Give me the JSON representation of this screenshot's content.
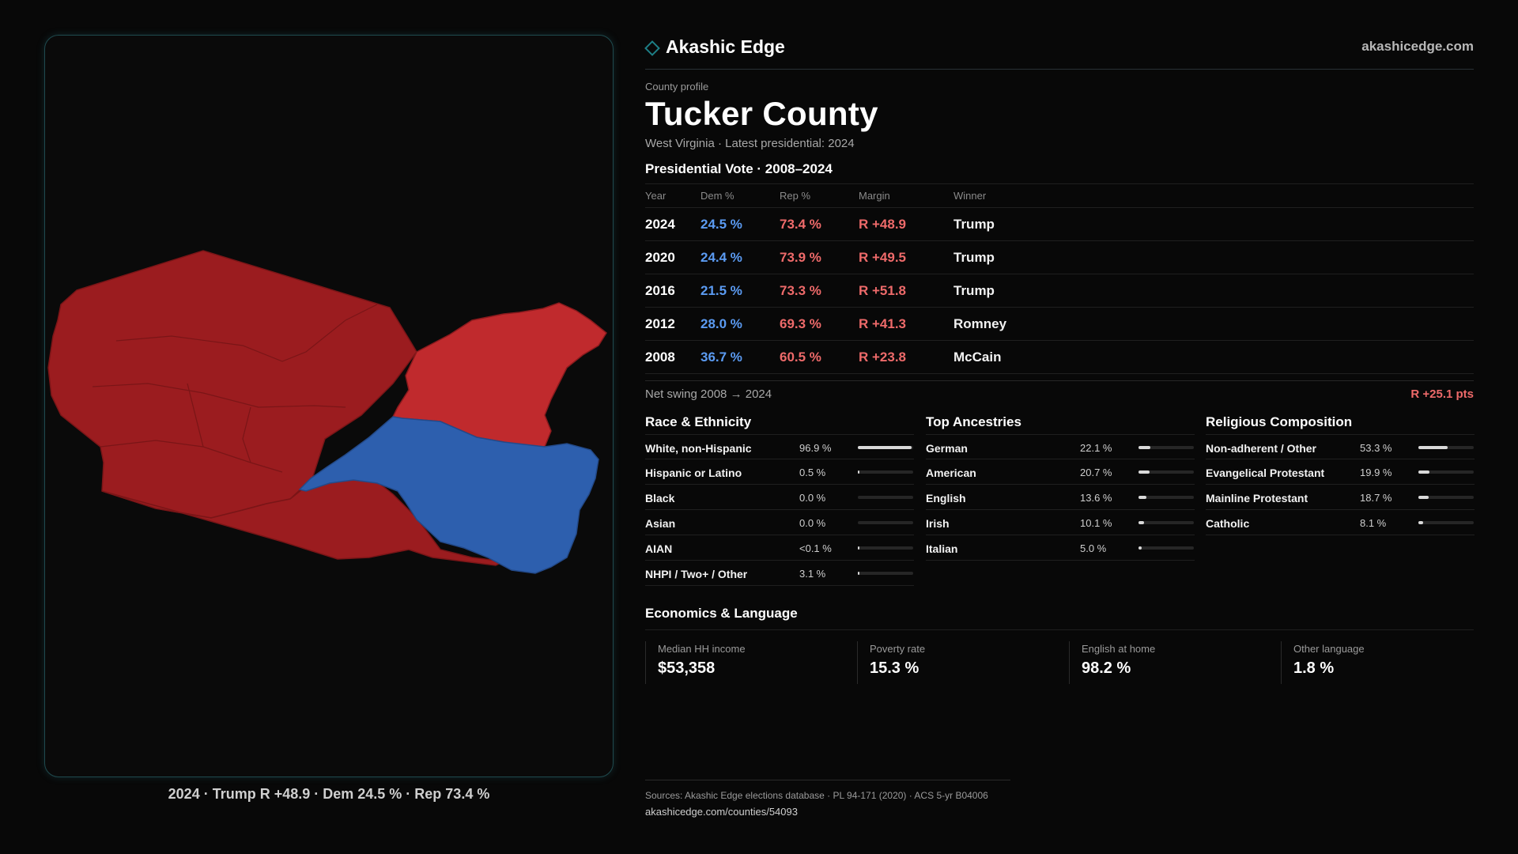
{
  "brand": {
    "name": "Akashic Edge",
    "url": "akashicedge.com"
  },
  "profile": {
    "eyebrow": "County profile",
    "county": "Tucker County",
    "subline": "West Virginia · Latest presidential: 2024"
  },
  "votes": {
    "title": "Presidential Vote · 2008–2024",
    "headers": {
      "year": "Year",
      "dem": "Dem %",
      "rep": "Rep %",
      "margin": "Margin",
      "winner": "Winner"
    },
    "rows": [
      {
        "year": "2024",
        "dem": "24.5 %",
        "rep": "73.4 %",
        "margin": "R +48.9",
        "winner": "Trump"
      },
      {
        "year": "2020",
        "dem": "24.4 %",
        "rep": "73.9 %",
        "margin": "R +49.5",
        "winner": "Trump"
      },
      {
        "year": "2016",
        "dem": "21.5 %",
        "rep": "73.3 %",
        "margin": "R +51.8",
        "winner": "Trump"
      },
      {
        "year": "2012",
        "dem": "28.0 %",
        "rep": "69.3 %",
        "margin": "R +41.3",
        "winner": "Romney"
      },
      {
        "year": "2008",
        "dem": "36.7 %",
        "rep": "60.5 %",
        "margin": "R +23.8",
        "winner": "McCain"
      }
    ]
  },
  "swing": {
    "label": "Net swing 2008 → 2024",
    "value": "R +25.1 pts"
  },
  "race": {
    "title": "Race & Ethnicity",
    "rows": [
      {
        "label": "White, non-Hispanic",
        "value": "96.9 %",
        "pct": 96.9
      },
      {
        "label": "Hispanic or Latino",
        "value": "0.5 %",
        "pct": 0.5
      },
      {
        "label": "Black",
        "value": "0.0 %",
        "pct": 0.0
      },
      {
        "label": "Asian",
        "value": "0.0 %",
        "pct": 0.0
      },
      {
        "label": "AIAN",
        "value": "<0.1 %",
        "pct": 0.05
      },
      {
        "label": "NHPI / Two+ / Other",
        "value": "3.1 %",
        "pct": 3.1
      }
    ]
  },
  "ancestry": {
    "title": "Top Ancestries",
    "rows": [
      {
        "label": "German",
        "value": "22.1 %",
        "pct": 22.1
      },
      {
        "label": "American",
        "value": "20.7 %",
        "pct": 20.7
      },
      {
        "label": "English",
        "value": "13.6 %",
        "pct": 13.6
      },
      {
        "label": "Irish",
        "value": "10.1 %",
        "pct": 10.1
      },
      {
        "label": "Italian",
        "value": "5.0 %",
        "pct": 5.0
      }
    ]
  },
  "religion": {
    "title": "Religious Composition",
    "rows": [
      {
        "label": "Non-adherent / Other",
        "value": "53.3 %",
        "pct": 53.3
      },
      {
        "label": "Evangelical Protestant",
        "value": "19.9 %",
        "pct": 19.9
      },
      {
        "label": "Mainline Protestant",
        "value": "18.7 %",
        "pct": 18.7
      },
      {
        "label": "Catholic",
        "value": "8.1 %",
        "pct": 8.1
      }
    ]
  },
  "economics": {
    "title": "Economics & Language",
    "cards": [
      {
        "label": "Median HH income",
        "value": "$53,358"
      },
      {
        "label": "Poverty rate",
        "value": "15.3 %"
      },
      {
        "label": "English at home",
        "value": "98.2 %"
      },
      {
        "label": "Other language",
        "value": "1.8 %"
      }
    ]
  },
  "map": {
    "caption": "2024 · Trump R +48.9 · Dem 24.5 % · Rep 73.4 %",
    "colors": {
      "rep_dark": "#9b1c1f",
      "rep_light": "#c02a2d",
      "dem": "#2d5fae",
      "border": "#7a1517"
    }
  },
  "sources": {
    "line": "Sources: Akashic Edge elections database · PL 94-171 (2020) · ACS 5-yr B04006",
    "url": "akashicedge.com/counties/54093"
  }
}
